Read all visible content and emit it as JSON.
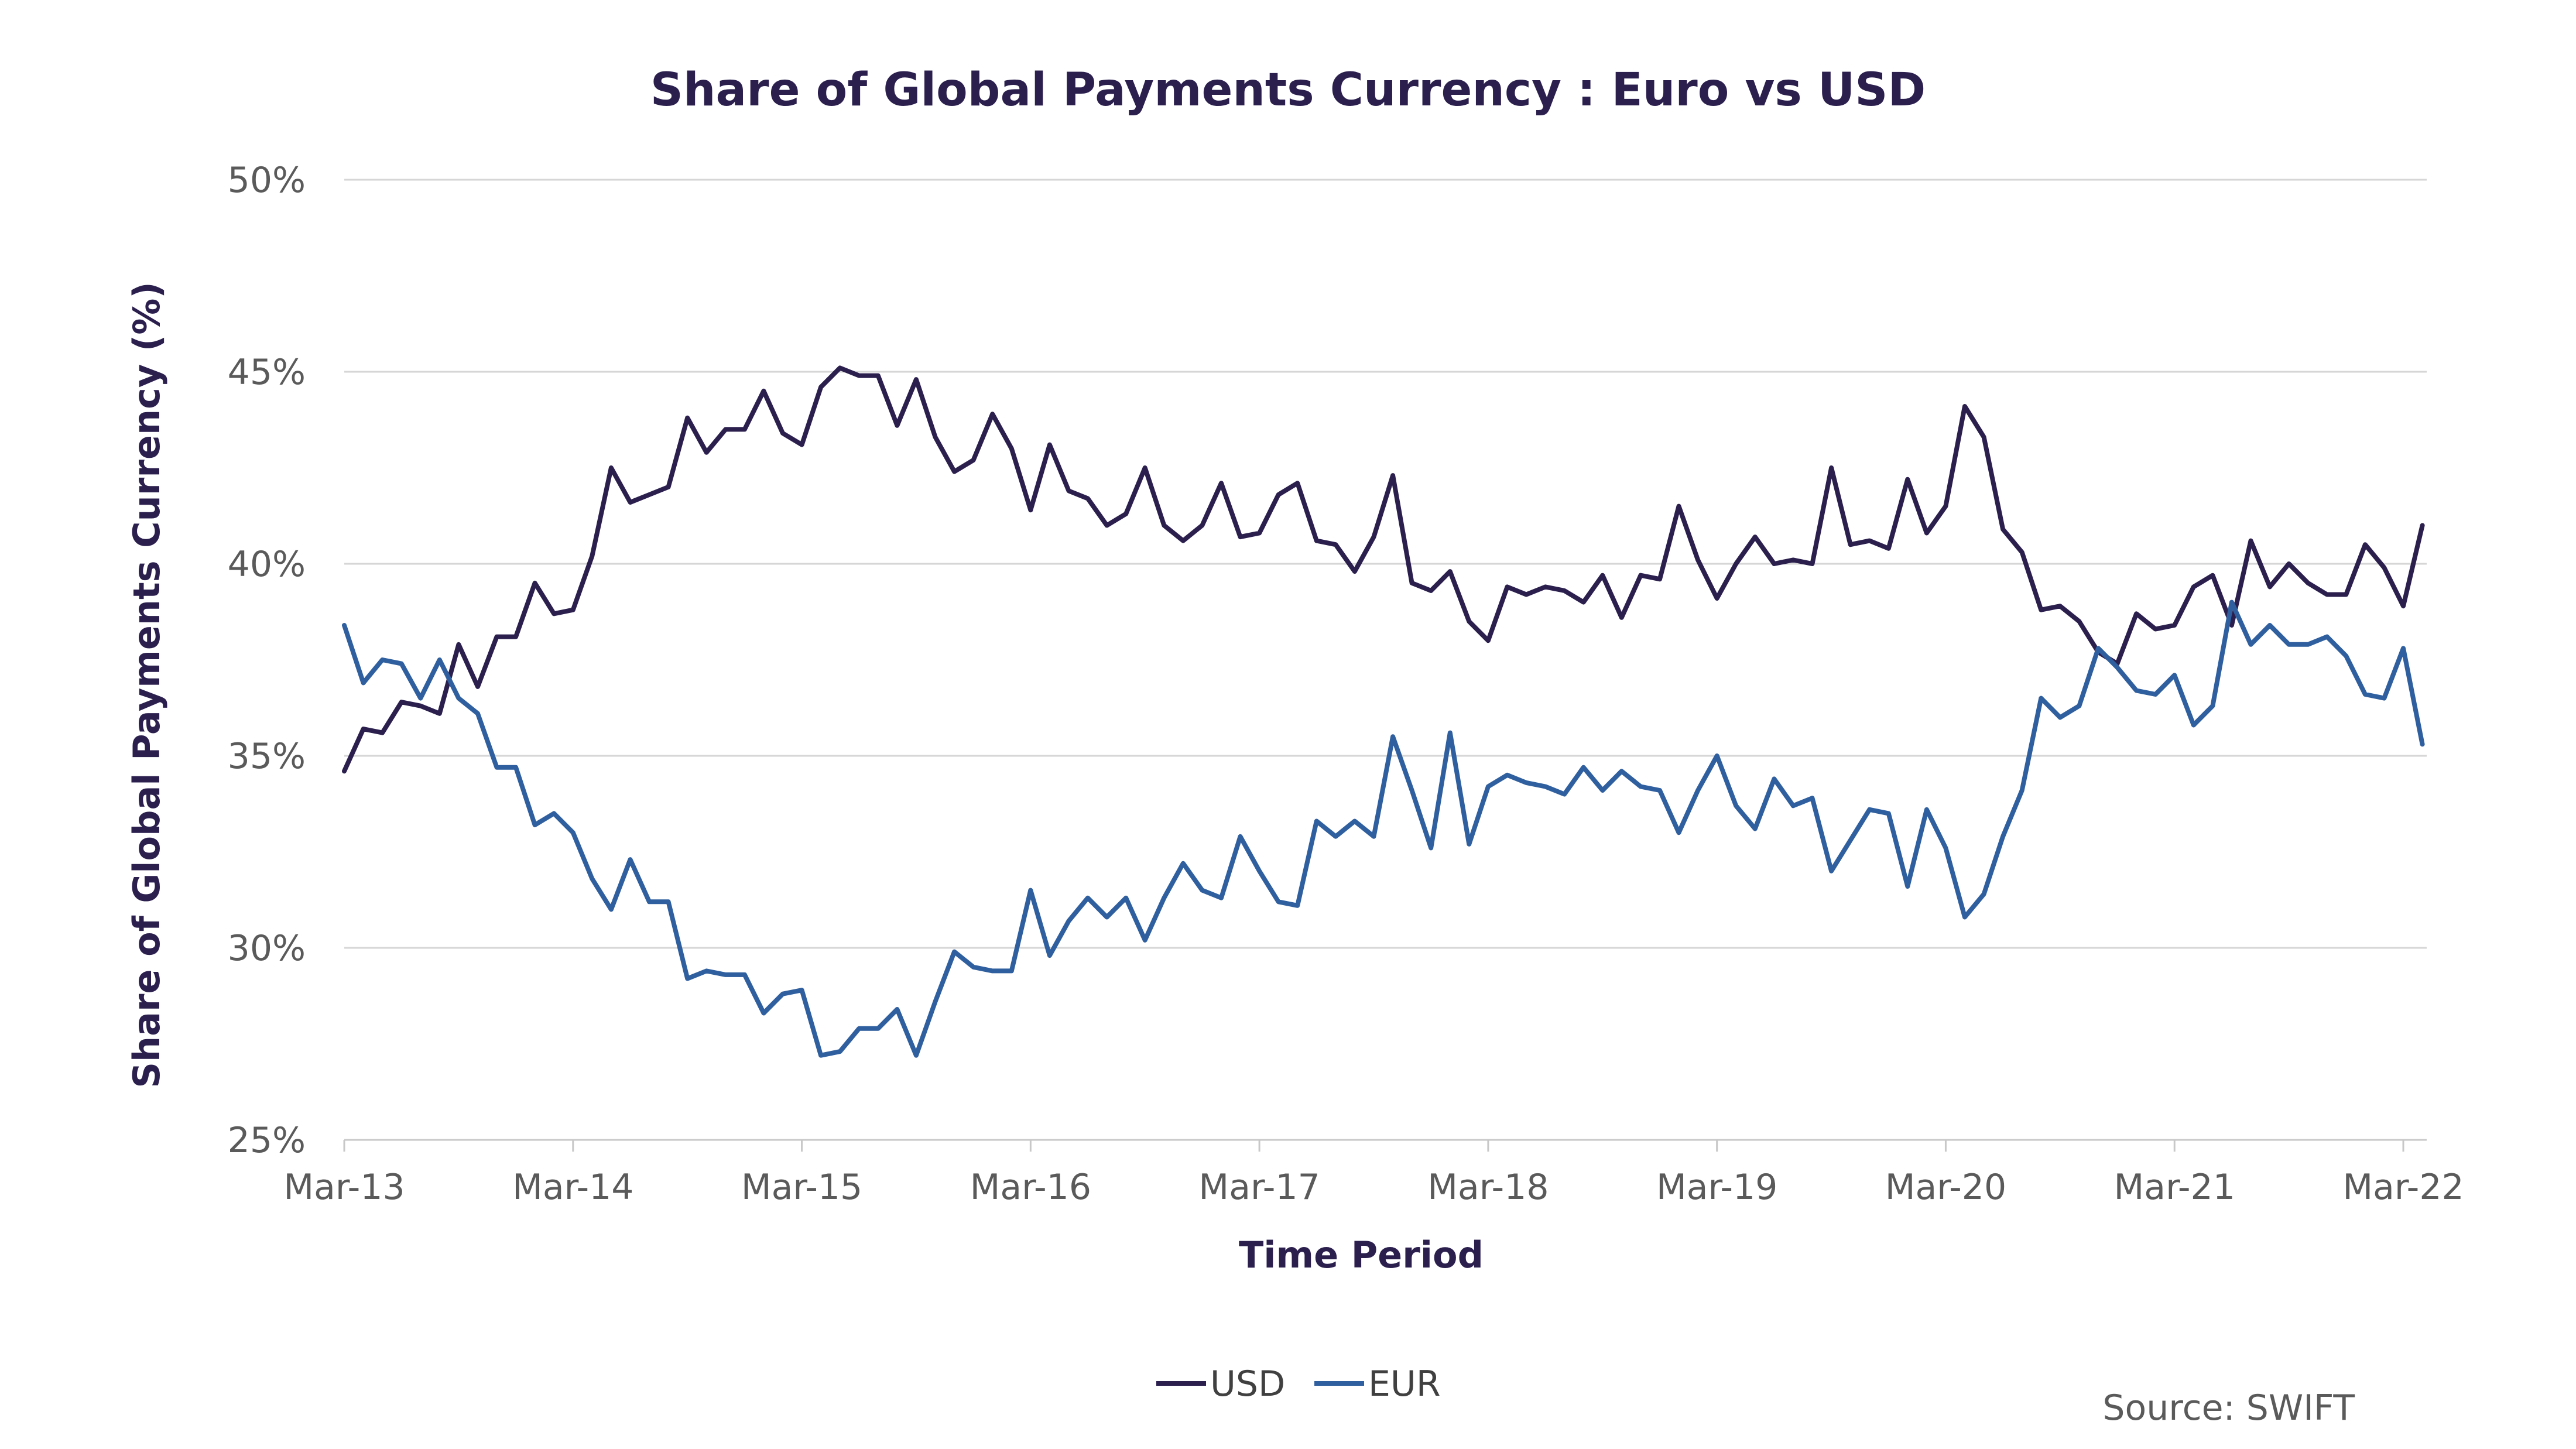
{
  "chart_data": {
    "type": "line",
    "title": "Share of Global Payments Currency : Euro vs USD",
    "xlabel": "Time Period",
    "ylabel": "Share of Global Payments Currency (%)",
    "ylim": [
      25,
      50
    ],
    "y_ticks": [
      25,
      30,
      35,
      40,
      45,
      50
    ],
    "y_tick_labels": [
      "25%",
      "30%",
      "35%",
      "40%",
      "45%",
      "50%"
    ],
    "x_ticks": [
      "Mar-13",
      "Mar-14",
      "Mar-15",
      "Mar-16",
      "Mar-17",
      "Mar-18",
      "Mar-19",
      "Mar-20",
      "Mar-21",
      "Mar-22"
    ],
    "x_range_months": [
      0,
      109
    ],
    "grid": true,
    "legend_position": "bottom-center",
    "source": "Source: SWIFT",
    "colors": {
      "USD": "#2b1f4e",
      "EUR": "#2f5f9e"
    },
    "series": [
      {
        "name": "USD",
        "values": [
          [
            0,
            34.6
          ],
          [
            1,
            35.7
          ],
          [
            2,
            35.6
          ],
          [
            3,
            36.4
          ],
          [
            4,
            36.3
          ],
          [
            5,
            36.1
          ],
          [
            6,
            37.9
          ],
          [
            7,
            36.8
          ],
          [
            8,
            38.1
          ],
          [
            9,
            38.1
          ],
          [
            10,
            39.5
          ],
          [
            11,
            38.7
          ],
          [
            12,
            38.8
          ],
          [
            13,
            40.2
          ],
          [
            14,
            42.5
          ],
          [
            15,
            41.6
          ],
          [
            16,
            41.8
          ],
          [
            17,
            42.0
          ],
          [
            18,
            43.8
          ],
          [
            19,
            42.9
          ],
          [
            20,
            43.5
          ],
          [
            21,
            43.5
          ],
          [
            22,
            44.5
          ],
          [
            23,
            43.4
          ],
          [
            24,
            43.1
          ],
          [
            25,
            44.6
          ],
          [
            26,
            45.1
          ],
          [
            27,
            44.9
          ],
          [
            28,
            44.9
          ],
          [
            29,
            43.6
          ],
          [
            30,
            44.8
          ],
          [
            31,
            43.3
          ],
          [
            32,
            42.4
          ],
          [
            33,
            42.7
          ],
          [
            34,
            43.9
          ],
          [
            35,
            43.0
          ],
          [
            36,
            41.4
          ],
          [
            37,
            43.1
          ],
          [
            38,
            41.9
          ],
          [
            39,
            41.7
          ],
          [
            40,
            41.0
          ],
          [
            41,
            41.3
          ],
          [
            42,
            42.5
          ],
          [
            43,
            41.0
          ],
          [
            44,
            40.6
          ],
          [
            45,
            41.0
          ],
          [
            46,
            42.1
          ],
          [
            47,
            40.7
          ],
          [
            48,
            40.8
          ],
          [
            49,
            41.8
          ],
          [
            50,
            42.1
          ],
          [
            51,
            40.6
          ],
          [
            52,
            40.5
          ],
          [
            53,
            39.8
          ],
          [
            54,
            40.7
          ],
          [
            55,
            42.3
          ],
          [
            56,
            39.5
          ],
          [
            57,
            39.3
          ],
          [
            58,
            39.8
          ],
          [
            59,
            38.5
          ],
          [
            60,
            38.0
          ],
          [
            61,
            39.4
          ],
          [
            62,
            39.2
          ],
          [
            63,
            39.4
          ],
          [
            64,
            39.3
          ],
          [
            65,
            39.0
          ],
          [
            66,
            39.7
          ],
          [
            67,
            38.6
          ],
          [
            68,
            39.7
          ],
          [
            69,
            39.6
          ],
          [
            70,
            41.5
          ],
          [
            71,
            40.1
          ],
          [
            72,
            39.1
          ],
          [
            73,
            40.0
          ],
          [
            74,
            40.7
          ],
          [
            75,
            40.0
          ],
          [
            76,
            40.1
          ],
          [
            77,
            40.0
          ],
          [
            78,
            42.5
          ],
          [
            79,
            40.5
          ],
          [
            80,
            40.6
          ],
          [
            81,
            40.4
          ],
          [
            82,
            42.2
          ],
          [
            83,
            40.8
          ],
          [
            84,
            41.5
          ],
          [
            85,
            44.1
          ],
          [
            86,
            43.3
          ],
          [
            87,
            40.9
          ],
          [
            88,
            40.3
          ],
          [
            89,
            38.8
          ],
          [
            90,
            38.9
          ],
          [
            91,
            38.5
          ],
          [
            92,
            37.7
          ],
          [
            93,
            37.4
          ],
          [
            94,
            38.7
          ],
          [
            95,
            38.3
          ],
          [
            96,
            38.4
          ],
          [
            97,
            39.4
          ],
          [
            98,
            39.7
          ],
          [
            99,
            38.4
          ],
          [
            100,
            40.6
          ],
          [
            101,
            39.4
          ],
          [
            102,
            40.0
          ],
          [
            103,
            39.5
          ],
          [
            104,
            39.2
          ],
          [
            105,
            39.2
          ],
          [
            106,
            40.5
          ],
          [
            107,
            39.9
          ],
          [
            108,
            38.9
          ],
          [
            109,
            41.0
          ]
        ]
      },
      {
        "name": "EUR",
        "values": [
          [
            0,
            38.4
          ],
          [
            1,
            36.9
          ],
          [
            2,
            37.5
          ],
          [
            3,
            37.4
          ],
          [
            4,
            36.5
          ],
          [
            5,
            37.5
          ],
          [
            6,
            36.5
          ],
          [
            7,
            36.1
          ],
          [
            8,
            34.7
          ],
          [
            9,
            34.7
          ],
          [
            10,
            33.2
          ],
          [
            11,
            33.5
          ],
          [
            12,
            33.0
          ],
          [
            13,
            31.8
          ],
          [
            14,
            31.0
          ],
          [
            15,
            32.3
          ],
          [
            16,
            31.2
          ],
          [
            17,
            31.2
          ],
          [
            18,
            29.2
          ],
          [
            19,
            29.4
          ],
          [
            20,
            29.3
          ],
          [
            21,
            29.3
          ],
          [
            22,
            28.3
          ],
          [
            23,
            28.8
          ],
          [
            24,
            28.9
          ],
          [
            25,
            27.2
          ],
          [
            26,
            27.3
          ],
          [
            27,
            27.9
          ],
          [
            28,
            27.9
          ],
          [
            29,
            28.4
          ],
          [
            30,
            27.2
          ],
          [
            31,
            28.6
          ],
          [
            32,
            29.9
          ],
          [
            33,
            29.5
          ],
          [
            34,
            29.4
          ],
          [
            35,
            29.4
          ],
          [
            36,
            31.5
          ],
          [
            37,
            29.8
          ],
          [
            38,
            30.7
          ],
          [
            39,
            31.3
          ],
          [
            40,
            30.8
          ],
          [
            41,
            31.3
          ],
          [
            42,
            30.2
          ],
          [
            43,
            31.3
          ],
          [
            44,
            32.2
          ],
          [
            45,
            31.5
          ],
          [
            46,
            31.3
          ],
          [
            47,
            32.9
          ],
          [
            48,
            32.0
          ],
          [
            49,
            31.2
          ],
          [
            50,
            31.1
          ],
          [
            51,
            33.3
          ],
          [
            52,
            32.9
          ],
          [
            53,
            33.3
          ],
          [
            54,
            32.9
          ],
          [
            55,
            35.5
          ],
          [
            56,
            34.1
          ],
          [
            57,
            32.6
          ],
          [
            58,
            35.6
          ],
          [
            59,
            32.7
          ],
          [
            60,
            34.2
          ],
          [
            61,
            34.5
          ],
          [
            62,
            34.3
          ],
          [
            63,
            34.2
          ],
          [
            64,
            34.0
          ],
          [
            65,
            34.7
          ],
          [
            66,
            34.1
          ],
          [
            67,
            34.6
          ],
          [
            68,
            34.2
          ],
          [
            69,
            34.1
          ],
          [
            70,
            33.0
          ],
          [
            71,
            34.1
          ],
          [
            72,
            35.0
          ],
          [
            73,
            33.7
          ],
          [
            74,
            33.1
          ],
          [
            75,
            34.4
          ],
          [
            76,
            33.7
          ],
          [
            77,
            33.9
          ],
          [
            78,
            32.0
          ],
          [
            79,
            32.8
          ],
          [
            80,
            33.6
          ],
          [
            81,
            33.5
          ],
          [
            82,
            31.6
          ],
          [
            83,
            33.6
          ],
          [
            84,
            32.6
          ],
          [
            85,
            30.8
          ],
          [
            86,
            31.4
          ],
          [
            87,
            32.9
          ],
          [
            88,
            34.1
          ],
          [
            89,
            36.5
          ],
          [
            90,
            36.0
          ],
          [
            91,
            36.3
          ],
          [
            92,
            37.8
          ],
          [
            93,
            37.3
          ],
          [
            94,
            36.7
          ],
          [
            95,
            36.6
          ],
          [
            96,
            37.1
          ],
          [
            97,
            35.8
          ],
          [
            98,
            36.3
          ],
          [
            99,
            39.0
          ],
          [
            100,
            37.9
          ],
          [
            101,
            38.4
          ],
          [
            102,
            37.9
          ],
          [
            103,
            37.9
          ],
          [
            104,
            38.1
          ],
          [
            105,
            37.6
          ],
          [
            106,
            36.6
          ],
          [
            107,
            36.5
          ],
          [
            108,
            37.8
          ],
          [
            109,
            35.3
          ]
        ]
      }
    ]
  }
}
